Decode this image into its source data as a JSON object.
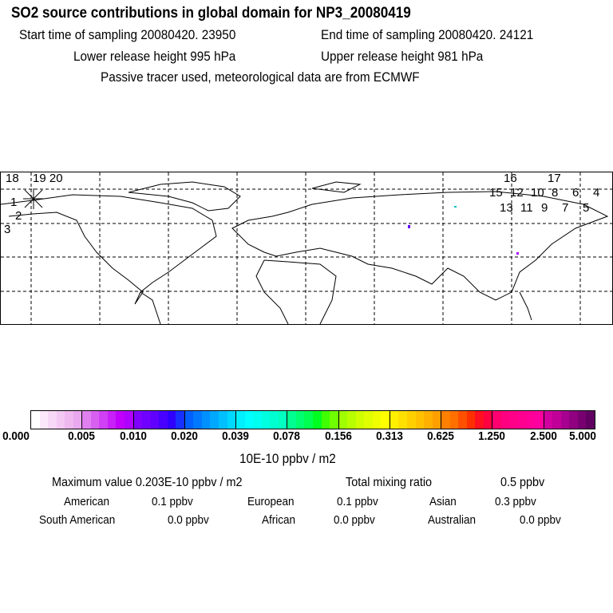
{
  "header": {
    "title": "SO2 source contributions in global domain for NP3_20080419",
    "start": "Start time of sampling 20080420. 23950",
    "end": "End time of sampling 20080420. 24121",
    "lower": "Lower release height  995 hPa",
    "upper": "Upper release height  981 hPa",
    "note": "Passive tracer used, meteorological data are from ECMWF"
  },
  "trajectory_labels": [
    "18",
    "19 20",
    "1",
    "2",
    "3",
    "16",
    "17",
    "15",
    "13",
    "12",
    "11",
    "10",
    "9",
    "8",
    "7",
    "6",
    "5",
    "4"
  ],
  "colorbar": {
    "ticks": [
      "0.000",
      "0.005",
      "0.010",
      "0.020",
      "0.039",
      "0.078",
      "0.156",
      "0.313",
      "0.625",
      "1.250",
      "2.500",
      "5.000"
    ],
    "unit": "10E-10 ppbv / m2",
    "colors": [
      [
        "#ffffff",
        "#fbe8fb",
        "#f7d8f7",
        "#f3c8f3",
        "#efb8ef",
        "#eaa8ef"
      ],
      [
        "#e080f0",
        "#d860f0",
        "#d040f4",
        "#c820f8",
        "#c000fc",
        "#b000ff"
      ],
      [
        "#8000ff",
        "#7000ff",
        "#6000ff",
        "#4800ff",
        "#3000ff",
        "#1830ff"
      ],
      [
        "#0060ff",
        "#0078ff",
        "#0090ff",
        "#00a8ff",
        "#00c0ff",
        "#00d8ff"
      ],
      [
        "#00f0ff",
        "#00ffff",
        "#00fff0",
        "#00ffe0",
        "#00ffd0",
        "#00ffc0"
      ],
      [
        "#00ff90",
        "#00ff70",
        "#00ff50",
        "#00ff20",
        "#40ff00",
        "#70ff00"
      ],
      [
        "#a0ff00",
        "#b8ff00",
        "#d0ff00",
        "#e0ff00",
        "#f0ff00",
        "#ffff00"
      ],
      [
        "#fff000",
        "#ffe000",
        "#ffd000",
        "#ffc000",
        "#ffb000",
        "#ffa000"
      ],
      [
        "#ff8000",
        "#ff7000",
        "#ff5000",
        "#ff3000",
        "#ff1020",
        "#ff0040"
      ],
      [
        "#ff0070",
        "#ff0080",
        "#ff0088",
        "#ff0090",
        "#ff0098",
        "#ff00a0"
      ],
      [
        "#d000a0",
        "#c00098",
        "#a80090",
        "#900080",
        "#780070",
        "#600060"
      ]
    ]
  },
  "stats": {
    "max_label": "Maximum value  0.203E-10 ppbv / m2",
    "total_label": "Total mixing ratio",
    "total_value": "0.5 ppbv",
    "regions": [
      {
        "name": "American",
        "value": "0.1 ppbv"
      },
      {
        "name": "European",
        "value": "0.1 ppbv"
      },
      {
        "name": "Asian",
        "value": "0.3 ppbv"
      },
      {
        "name": "South American",
        "value": "0.0 ppbv"
      },
      {
        "name": "African",
        "value": "0.0 ppbv"
      },
      {
        "name": "Australian",
        "value": "0.0 ppbv"
      }
    ]
  }
}
